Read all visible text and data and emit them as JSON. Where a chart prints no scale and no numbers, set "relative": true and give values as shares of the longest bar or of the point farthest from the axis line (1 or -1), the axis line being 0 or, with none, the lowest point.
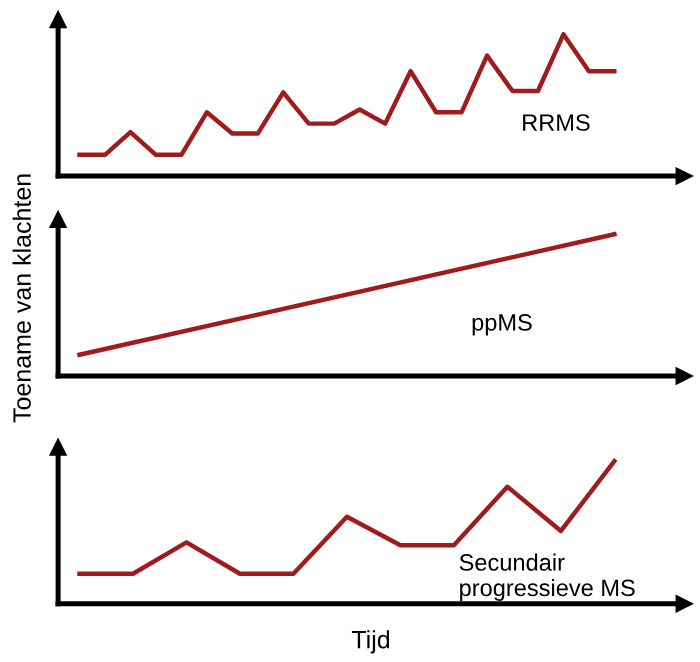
{
  "chart_data": [
    {
      "type": "line",
      "relative": true,
      "categories": [
        null,
        null,
        null,
        null,
        null,
        null,
        null,
        null,
        null,
        null,
        null,
        null,
        null,
        null,
        null,
        null,
        null,
        null,
        null,
        null,
        null,
        null
      ],
      "series": [
        {
          "name": "RRMS",
          "color": "#a01c1c",
          "values": [
            0.15,
            0.15,
            0.31,
            0.15,
            0.15,
            0.45,
            0.3,
            0.3,
            0.59,
            0.37,
            0.37,
            0.47,
            0.37,
            0.74,
            0.45,
            0.45,
            0.85,
            0.6,
            0.6,
            1,
            0.74,
            0.74
          ]
        }
      ]
    },
    {
      "type": "line",
      "relative": true,
      "ylabel": "Toename van klachten",
      "categories": [
        null,
        null
      ],
      "series": [
        {
          "name": "ppMS",
          "color": "#a01c1c",
          "values": [
            0.15,
            1
          ]
        }
      ]
    },
    {
      "type": "line",
      "relative": true,
      "xlabel": "Tijd",
      "categories": [
        null,
        null,
        null,
        null,
        null,
        null,
        null,
        null,
        null,
        null,
        null
      ],
      "series": [
        {
          "name": "Secundair\nprogressieve MS",
          "color": "#a01c1c",
          "values": [
            0.21,
            0.21,
            0.43,
            0.21,
            0.21,
            0.61,
            0.41,
            0.41,
            0.82,
            0.51,
            1
          ]
        }
      ]
    }
  ]
}
